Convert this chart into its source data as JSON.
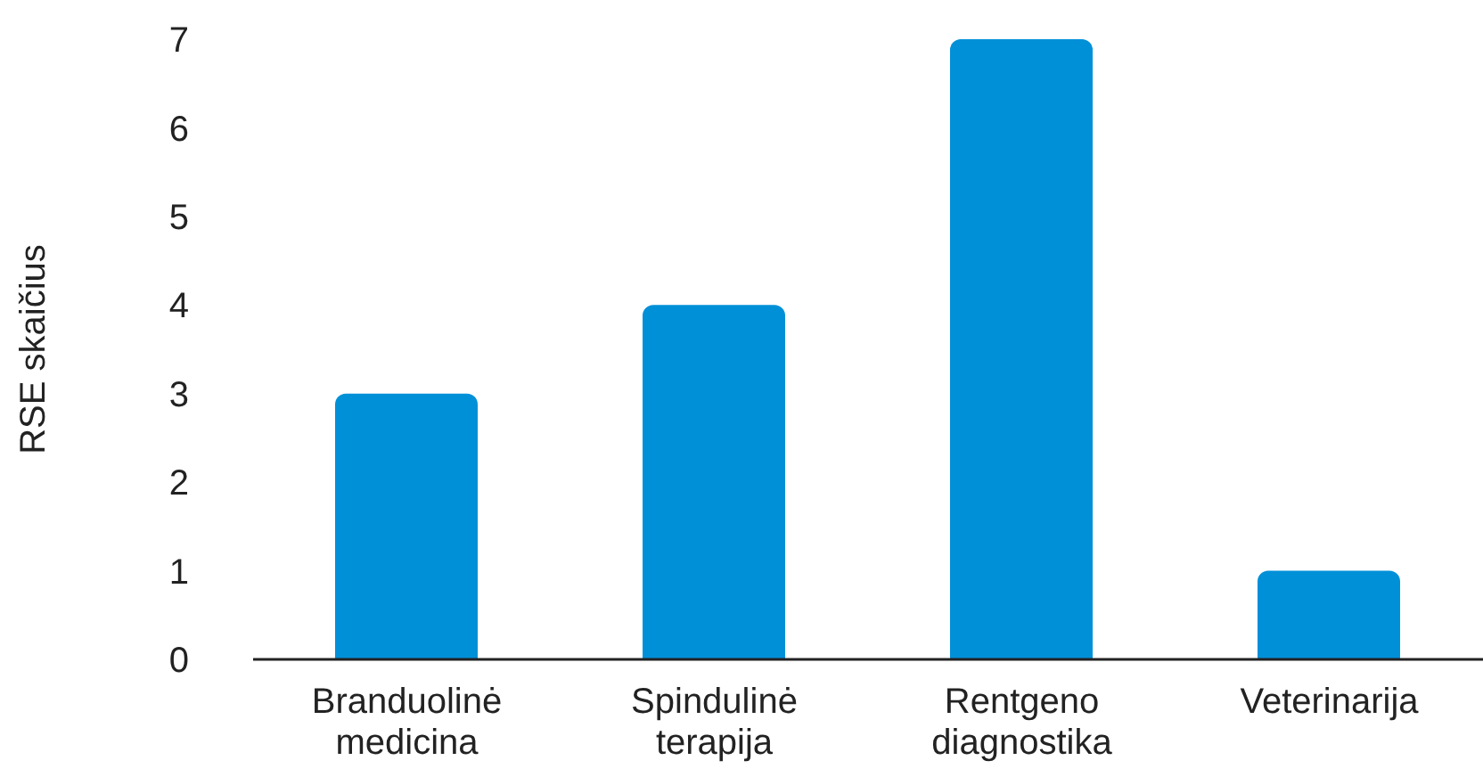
{
  "chart_data": {
    "type": "bar",
    "ylabel": "RSE skaičius",
    "categories": [
      "Branduolinė medicina",
      "Spindulinė terapija",
      "Rentgeno diagnostika",
      "Veterinarija"
    ],
    "values": [
      3,
      4,
      7,
      1
    ],
    "color": "#0090d8",
    "ylim": [
      0,
      7
    ],
    "yticks": [
      0,
      1,
      2,
      3,
      4,
      5,
      6,
      7
    ],
    "grid": false,
    "legend": false
  }
}
